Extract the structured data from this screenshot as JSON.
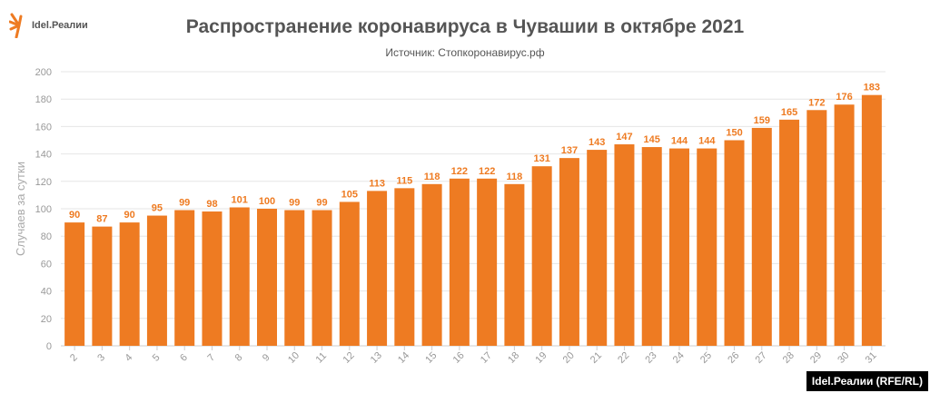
{
  "logo_text": "Idel.Реалии",
  "credit": "Idel.Реалии (RFE/RL)",
  "chart_data": {
    "type": "bar",
    "title": "Распространение коронавируса в Чувашии в октябре 2021",
    "subtitle": "Источник: Стопкоронавирус.рф",
    "xlabel": "",
    "ylabel": "Случаев за сутки",
    "ylim": [
      0,
      200
    ],
    "yticks": [
      0,
      20,
      40,
      60,
      80,
      100,
      120,
      140,
      160,
      180,
      200
    ],
    "grid": true,
    "bar_color": "#ee7b22",
    "categories": [
      "2",
      "3",
      "4",
      "5",
      "6",
      "7",
      "8",
      "9",
      "10",
      "11",
      "12",
      "13",
      "14",
      "15",
      "16",
      "17",
      "18",
      "19",
      "20",
      "21",
      "22",
      "23",
      "24",
      "25",
      "26",
      "27",
      "28",
      "29",
      "30",
      "31"
    ],
    "values": [
      90,
      87,
      90,
      95,
      99,
      98,
      101,
      100,
      99,
      99,
      105,
      113,
      115,
      118,
      122,
      122,
      118,
      131,
      137,
      143,
      147,
      145,
      144,
      144,
      150,
      159,
      165,
      172,
      176,
      183
    ]
  }
}
